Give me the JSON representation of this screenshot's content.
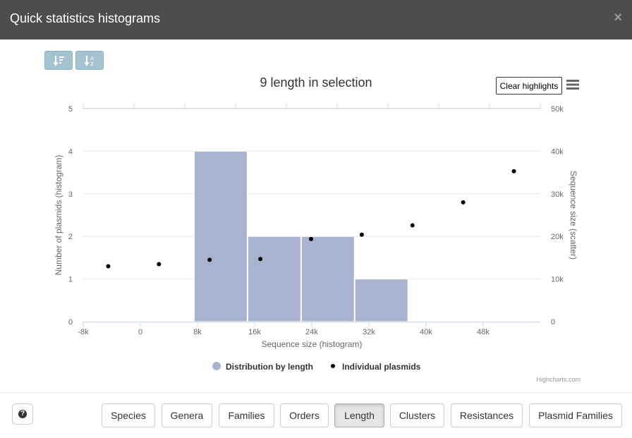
{
  "modal": {
    "title": "Quick statistics histograms",
    "close_label": "×"
  },
  "toolbar": {
    "sort_desc_icon": "sort-amount-desc-icon",
    "sort_alpha_icon": "sort-alpha-icon",
    "clear_label": "Clear highlights",
    "menu_icon": "hamburger-menu-icon"
  },
  "chart_data": {
    "type": "bar",
    "title": "9 length in selection",
    "xlabel": "Sequence size (histogram)",
    "ylabel": "Number of plasmids (histogram)",
    "y2label": "Sequence size (scatter)",
    "xlim": [
      -8000,
      56000
    ],
    "ylim": [
      0,
      5
    ],
    "y2lim": [
      0,
      50000
    ],
    "x_ticks": [
      "-8k",
      "0",
      "8k",
      "16k",
      "24k",
      "32k",
      "40k",
      "48k"
    ],
    "y_ticks": [
      "0",
      "1",
      "2",
      "3",
      "4",
      "5"
    ],
    "y2_ticks": [
      "0",
      "10k",
      "20k",
      "30k",
      "40k",
      "50k"
    ],
    "grid": true,
    "bins": [
      {
        "x0": 7500,
        "x1": 15000,
        "count": 4
      },
      {
        "x0": 15000,
        "x1": 22500,
        "count": 2
      },
      {
        "x0": 22500,
        "x1": 30000,
        "count": 2
      },
      {
        "x0": 30000,
        "x1": 37500,
        "count": 1
      }
    ],
    "series": [
      {
        "name": "Distribution by length",
        "color": "#a8b3cf"
      },
      {
        "name": "Individual plasmids",
        "color": "#000000",
        "x": [
          -4500,
          2600,
          9700,
          16800,
          23900,
          31000,
          38100,
          45200,
          52300
        ],
        "y": [
          13000,
          13500,
          14500,
          14700,
          19400,
          20400,
          22600,
          28000,
          35300
        ]
      }
    ],
    "legend_position": "bottom-center",
    "credits": "Highcharts.com"
  },
  "footer": {
    "help_icon": "question-circle-icon",
    "tabs": [
      {
        "label": "Species",
        "active": false
      },
      {
        "label": "Genera",
        "active": false
      },
      {
        "label": "Families",
        "active": false
      },
      {
        "label": "Orders",
        "active": false
      },
      {
        "label": "Length",
        "active": true
      },
      {
        "label": "Clusters",
        "active": false
      },
      {
        "label": "Resistances",
        "active": false
      },
      {
        "label": "Plasmid Families",
        "active": false
      }
    ]
  }
}
